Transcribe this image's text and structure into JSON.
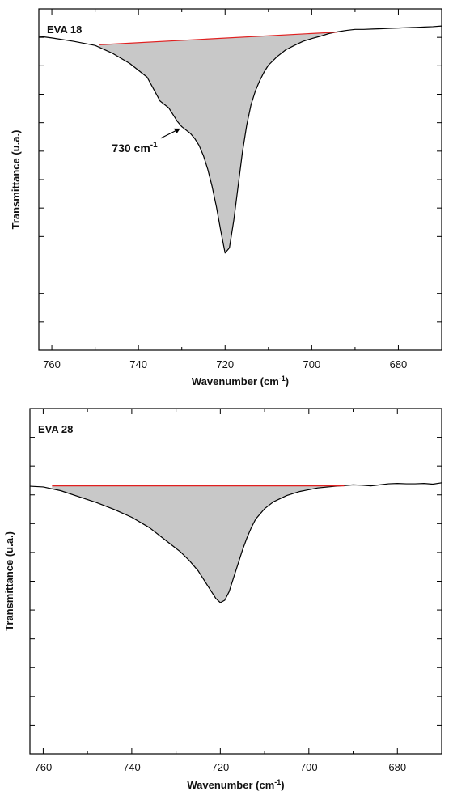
{
  "chart_data": [
    {
      "type": "area",
      "title": "EVA  18",
      "xlabel": "Wavenumber (cm",
      "xlabel_sup": "-1",
      "xlabel_end": ")",
      "ylabel": "Transmittance (u.a.)",
      "xlim": [
        763,
        670
      ],
      "ylim": [
        0,
        1
      ],
      "xticks": [
        760,
        740,
        720,
        700,
        680
      ],
      "minor_x_step": 10,
      "yticks_count": 12,
      "y_tick_labels": false,
      "grid": false,
      "annotation": {
        "text": "730 cm",
        "sup": "-1",
        "x": 730,
        "y": 0.652
      },
      "spectrum": {
        "color": "#000000",
        "x": [
          763,
          760,
          755,
          750,
          746,
          742,
          738,
          735,
          733,
          732,
          731,
          730,
          729,
          728,
          727,
          726,
          725,
          724,
          723,
          722,
          721,
          720,
          719,
          718,
          717,
          716,
          715,
          714,
          713,
          712,
          711,
          710,
          708,
          706,
          704,
          702,
          700,
          698,
          696,
          694,
          692,
          690,
          688,
          686,
          684,
          682,
          680,
          678,
          676,
          674,
          672,
          670
        ],
        "y": [
          0.92,
          0.915,
          0.905,
          0.893,
          0.87,
          0.84,
          0.8,
          0.73,
          0.71,
          0.69,
          0.67,
          0.655,
          0.645,
          0.635,
          0.62,
          0.6,
          0.57,
          0.53,
          0.48,
          0.42,
          0.35,
          0.285,
          0.3,
          0.38,
          0.48,
          0.58,
          0.66,
          0.72,
          0.76,
          0.79,
          0.815,
          0.835,
          0.86,
          0.88,
          0.893,
          0.905,
          0.913,
          0.92,
          0.928,
          0.933,
          0.937,
          0.94,
          0.94,
          0.941,
          0.942,
          0.943,
          0.944,
          0.945,
          0.946,
          0.947,
          0.948,
          0.95
        ]
      },
      "baseline": {
        "color": "#e02020",
        "x": [
          749,
          694
        ],
        "y": [
          0.895,
          0.932
        ]
      },
      "fill_color": "#c8c8c8"
    },
    {
      "type": "area",
      "title": "EVA  28",
      "xlabel": "Wavenumber (cm",
      "xlabel_sup": "-1",
      "xlabel_end": ")",
      "ylabel": "Transmittance (u.a.)",
      "xlim": [
        763,
        670
      ],
      "ylim": [
        0,
        1
      ],
      "xticks": [
        760,
        740,
        720,
        700,
        680
      ],
      "minor_x_step": 10,
      "yticks_count": 12,
      "y_tick_labels": false,
      "grid": false,
      "spectrum": {
        "color": "#000000",
        "x": [
          763,
          760,
          756,
          752,
          748,
          744,
          740,
          736,
          732,
          729,
          727,
          725,
          723,
          722,
          721,
          720,
          719,
          718,
          717,
          716,
          715,
          714,
          713,
          712,
          710,
          708,
          705,
          702,
          698,
          694,
          692,
          690,
          688,
          686,
          684,
          682,
          680,
          678,
          676,
          674,
          672,
          670
        ],
        "y": [
          0.775,
          0.773,
          0.762,
          0.745,
          0.728,
          0.708,
          0.685,
          0.655,
          0.615,
          0.585,
          0.56,
          0.53,
          0.49,
          0.47,
          0.45,
          0.438,
          0.445,
          0.47,
          0.51,
          0.55,
          0.59,
          0.625,
          0.655,
          0.68,
          0.71,
          0.73,
          0.748,
          0.76,
          0.77,
          0.775,
          0.777,
          0.779,
          0.778,
          0.776,
          0.779,
          0.782,
          0.783,
          0.782,
          0.782,
          0.783,
          0.781,
          0.785
        ]
      },
      "baseline": {
        "color": "#e02020",
        "x": [
          758,
          692
        ],
        "y": [
          0.776,
          0.776
        ]
      },
      "fill_color": "#c8c8c8"
    }
  ]
}
